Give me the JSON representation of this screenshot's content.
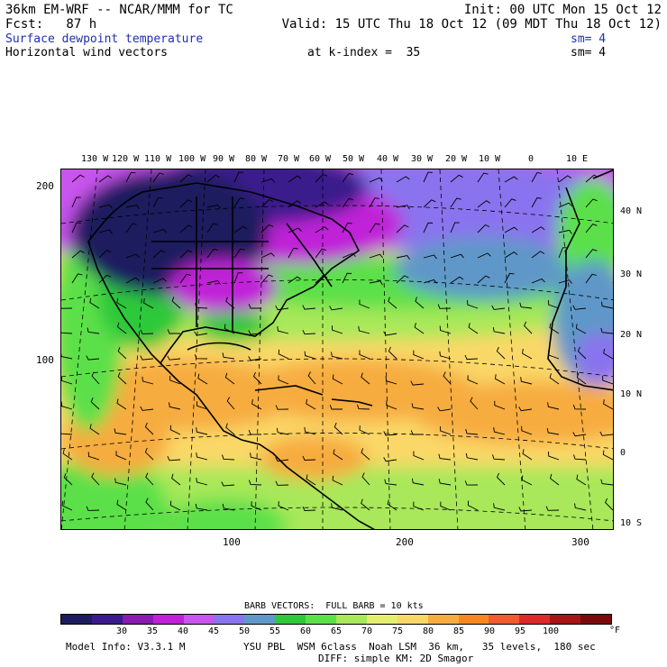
{
  "header": {
    "model": "36km EM-WRF -- NCAR/MMM for TC",
    "init": "Init: 00 UTC Mon 15 Oct 12",
    "fcst": "Fcst:   87 h",
    "valid": "Valid: 15 UTC Thu 18 Oct 12 (09 MDT Thu 18 Oct 12)",
    "field1": "Surface dewpoint temperature",
    "field1_sm": "sm= 4",
    "field2": "Horizontal wind vectors",
    "field2_level": "at k-index =  35",
    "field2_sm": "sm= 4"
  },
  "longitude_labels": [
    "130 W",
    "120 W",
    "110 W",
    "100 W",
    "90 W",
    "80 W",
    "70 W",
    "60 W",
    "50 W",
    "40 W",
    "30 W",
    "20 W",
    "10 W",
    "0",
    "10 E"
  ],
  "latitude_labels": [
    "40 N",
    "30 N",
    "20 N",
    "10 N",
    "0",
    "10 S"
  ],
  "grid_y_labels": [
    "200",
    "100"
  ],
  "grid_x_labels": [
    "100",
    "200",
    "300"
  ],
  "barb_title": "BARB VECTORS:  FULL BARB = 10 kts",
  "colorbar": {
    "labels": [
      "30",
      "35",
      "40",
      "45",
      "50",
      "55",
      "60",
      "65",
      "70",
      "75",
      "80",
      "85",
      "90",
      "95",
      "100"
    ],
    "unit": "°F",
    "colors": [
      "#1c1c5e",
      "#3a1a8c",
      "#8a1ab0",
      "#c020d8",
      "#c855ee",
      "#8a73ee",
      "#5f98c8",
      "#2ec83a",
      "#5ce04a",
      "#a8e85a",
      "#e6ee70",
      "#fad868",
      "#f7ac40",
      "#f78820",
      "#f25a30",
      "#dc2a2a",
      "#a81414",
      "#7a0a0a"
    ]
  },
  "footer": {
    "model_info": "Model Info: V3.3.1 M",
    "physics1": "YSU PBL  WSM 6class  Noah LSM  36 km,   35 levels,  180 sec",
    "physics2": "DIFF: simple KM: 2D Smagor"
  }
}
